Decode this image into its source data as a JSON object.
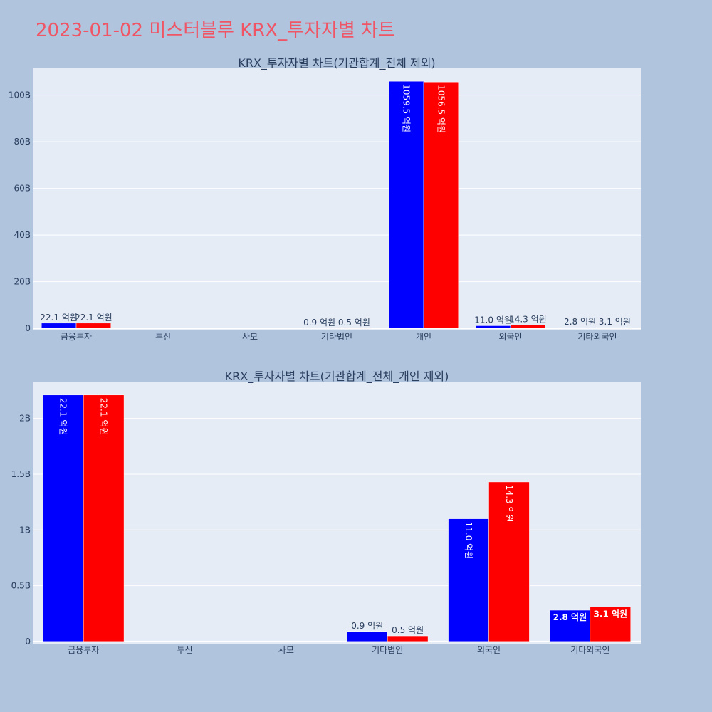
{
  "page": {
    "title": "2023-01-02 미스터블루 KRX_투자자별 차트"
  },
  "colors": {
    "background": "#b0c4de",
    "plot_bg": "#e5ecf6",
    "title": "#ef5565",
    "series_1": "#0000ff",
    "series_2": "#ff0000",
    "text": "#2a3f5f"
  },
  "chart_data": [
    {
      "type": "bar",
      "title": "KRX_투자자별 차트(기관합계_전체 제외)",
      "categories": [
        "금융투자",
        "투신",
        "사모",
        "기타법인",
        "개인",
        "외국인",
        "기타외국인"
      ],
      "series": [
        {
          "color": "#0000ff",
          "values": [
            2.21,
            0,
            0,
            0.09,
            105.95,
            1.1,
            0.28
          ]
        },
        {
          "color": "#ff0000",
          "values": [
            2.21,
            0,
            0,
            0.05,
            105.65,
            1.43,
            0.31
          ]
        }
      ],
      "value_unit": "B",
      "data_labels": [
        [
          "22.1 억원",
          "",
          "",
          "0.9 억원",
          "1059.5 억원",
          "11.0 억원",
          "2.8 억원"
        ],
        [
          "22.1 억원",
          "",
          "",
          "0.5 억원",
          "1056.5 억원",
          "14.3 억원",
          "3.1 억원"
        ]
      ],
      "y_ticks": [
        {
          "value": 0,
          "label": "0"
        },
        {
          "value": 20,
          "label": "20B"
        },
        {
          "value": 40,
          "label": "40B"
        },
        {
          "value": 60,
          "label": "60B"
        },
        {
          "value": 80,
          "label": "80B"
        },
        {
          "value": 100,
          "label": "100B"
        }
      ],
      "ylim": [
        -0.9,
        111.5
      ],
      "grid": true,
      "legend": false
    },
    {
      "type": "bar",
      "title": "KRX_투자자별 차트(기관합계_전체_개인 제외)",
      "categories": [
        "금융투자",
        "투신",
        "사모",
        "기타법인",
        "외국인",
        "기타외국인"
      ],
      "series": [
        {
          "color": "#0000ff",
          "values": [
            2.21,
            0,
            0,
            0.09,
            1.1,
            0.28
          ]
        },
        {
          "color": "#ff0000",
          "values": [
            2.21,
            0,
            0,
            0.05,
            1.43,
            0.31
          ]
        }
      ],
      "value_unit": "B",
      "data_labels": [
        [
          "22.1 억원",
          "",
          "",
          "0.9 억원",
          "11.0 억원",
          "2.8 억원"
        ],
        [
          "22.1 억원",
          "",
          "",
          "0.5 억원",
          "14.3 억원",
          "3.1 억원"
        ]
      ],
      "y_ticks": [
        {
          "value": 0,
          "label": "0"
        },
        {
          "value": 0.5,
          "label": "0.5B"
        },
        {
          "value": 1,
          "label": "1B"
        },
        {
          "value": 1.5,
          "label": "1.5B"
        },
        {
          "value": 2,
          "label": "2B"
        }
      ],
      "ylim": [
        -0.02,
        2.33
      ],
      "grid": true,
      "legend": false
    }
  ]
}
